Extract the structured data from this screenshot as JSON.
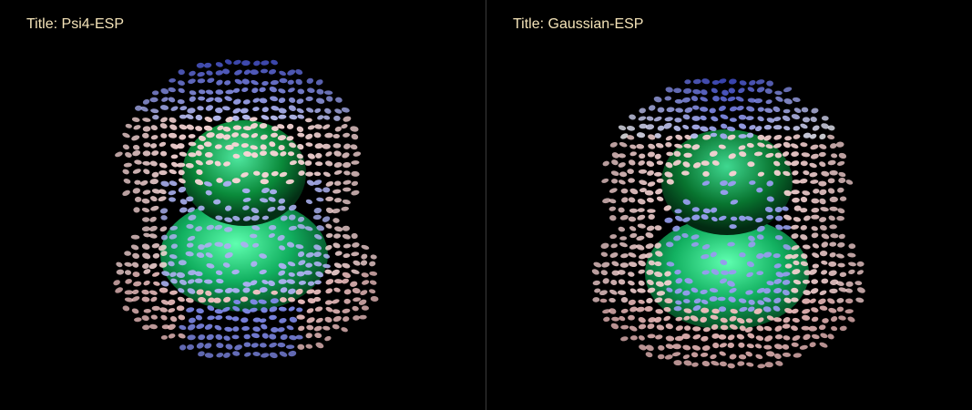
{
  "viewers": [
    {
      "title": "Title: Psi4-ESP",
      "colors": {
        "background": "#000000",
        "title_text": "#f4e3b8",
        "negative_potential": "#e8a0a0",
        "neutral_potential": "#ffffff",
        "positive_potential": "#2a3ad8",
        "molecule": "#10a050"
      }
    },
    {
      "title": "Title: Gaussian-ESP",
      "colors": {
        "background": "#000000",
        "title_text": "#f4e3b8",
        "negative_potential": "#e8a0a0",
        "neutral_potential": "#ffffff",
        "positive_potential": "#2a3ad8",
        "molecule": "#10a050"
      }
    }
  ]
}
